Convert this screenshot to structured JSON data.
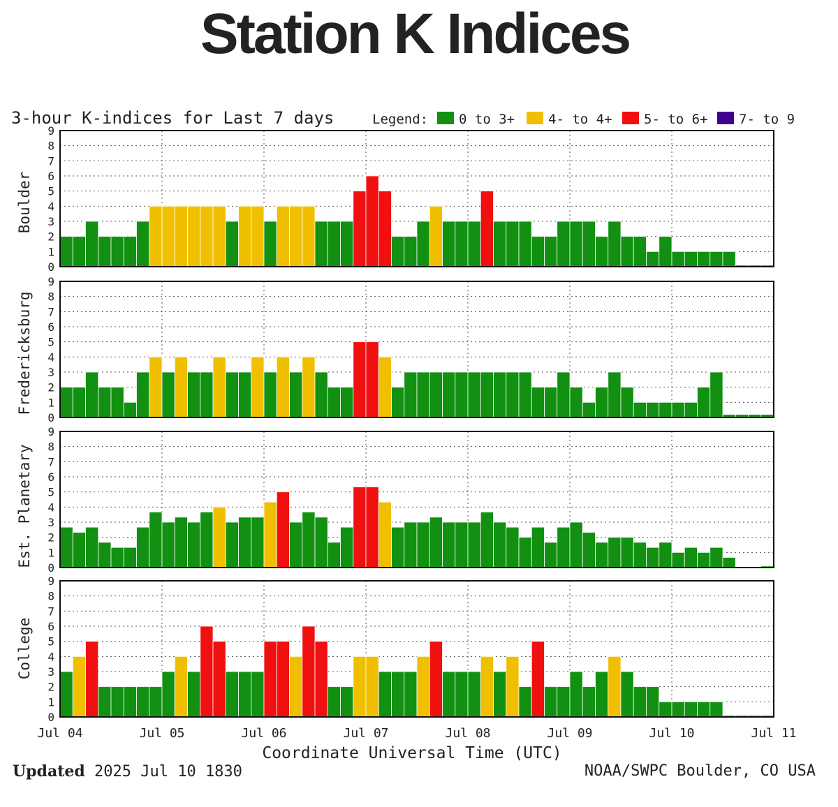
{
  "page_title": "Station K Indices",
  "footer": {
    "updated_label": "Updated",
    "updated_value": "2025 Jul 10 1830",
    "source": "NOAA/SWPC Boulder, CO USA"
  },
  "colors": {
    "0 to 3+": "#119011",
    "4- to 4+": "#f0c000",
    "5- to 6+": "#f01010",
    "7- to 9": "#400090"
  },
  "chart_data": {
    "type": "bar",
    "title": "3-hour K-indices for Last 7 days",
    "legend_title": "Legend:",
    "legend": [
      {
        "label": "0 to 3+",
        "color": "#119011"
      },
      {
        "label": "4- to 4+",
        "color": "#f0c000"
      },
      {
        "label": "5- to 6+",
        "color": "#f01010"
      },
      {
        "label": "7- to 9",
        "color": "#400090"
      }
    ],
    "xlabel": "Coordinate Universal Time (UTC)",
    "x_ticks": [
      "Jul 04",
      "Jul 05",
      "Jul 06",
      "Jul 07",
      "Jul 08",
      "Jul 09",
      "Jul 10",
      "Jul 11"
    ],
    "ylim": [
      0,
      9
    ],
    "y_ticks": [
      0,
      1,
      2,
      3,
      4,
      5,
      6,
      7,
      8,
      9
    ],
    "interval_hours": 3,
    "grid": "dotted",
    "series": [
      {
        "name": "Boulder",
        "values": [
          2,
          2,
          3,
          2,
          2,
          2,
          3,
          4,
          4,
          4,
          4,
          4,
          4,
          3,
          4,
          4,
          3,
          4,
          4,
          4,
          3,
          3,
          3,
          5,
          6,
          5,
          2,
          2,
          3,
          4,
          3,
          3,
          3,
          5,
          3,
          3,
          3,
          2,
          2,
          3,
          3,
          3,
          2,
          3,
          2,
          2,
          1,
          2,
          1,
          1,
          1,
          1,
          1,
          0.1,
          0.1,
          0.1
        ]
      },
      {
        "name": "Fredericksburg",
        "values": [
          2,
          2,
          3,
          2,
          2,
          1,
          3,
          4,
          3,
          4,
          3,
          3,
          4,
          3,
          3,
          4,
          3,
          4,
          3,
          4,
          3,
          2,
          2,
          5,
          5,
          4,
          2,
          3,
          3,
          3,
          3,
          3,
          3,
          3,
          3,
          3,
          3,
          2,
          2,
          3,
          2,
          1,
          2,
          3,
          2,
          1,
          1,
          1,
          1,
          1,
          2,
          3,
          0.2,
          0.2,
          0.2,
          0.2
        ]
      },
      {
        "name": "Est. Planetary",
        "values": [
          2.67,
          2.33,
          2.67,
          1.67,
          1.33,
          1.33,
          2.67,
          3.67,
          3,
          3.33,
          3,
          3.67,
          4,
          3,
          3.33,
          3.33,
          4.33,
          5,
          3,
          3.67,
          3.33,
          1.67,
          2.67,
          5.33,
          5.33,
          4.33,
          2.67,
          3,
          3,
          3.33,
          3,
          3,
          3,
          3.67,
          3,
          2.67,
          2,
          2.67,
          1.67,
          2.67,
          3,
          2.33,
          1.67,
          2,
          2,
          1.67,
          1.33,
          1.67,
          1,
          1.33,
          1,
          1.33,
          0.67,
          0,
          0,
          0.1
        ]
      },
      {
        "name": "College",
        "values": [
          3,
          4,
          5,
          2,
          2,
          2,
          2,
          2,
          3,
          4,
          3,
          6,
          5,
          3,
          3,
          3,
          5,
          5,
          4,
          6,
          5,
          2,
          2,
          4,
          4,
          3,
          3,
          3,
          4,
          5,
          3,
          3,
          3,
          4,
          3,
          4,
          2,
          5,
          2,
          2,
          3,
          2,
          3,
          4,
          3,
          2,
          2,
          1,
          1,
          1,
          1,
          1,
          0.1,
          0.1,
          0.1,
          0.1
        ]
      }
    ]
  }
}
